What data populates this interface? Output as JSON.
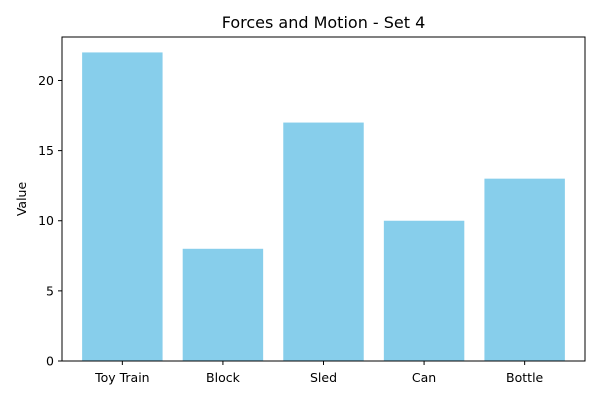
{
  "chart_data": {
    "type": "bar",
    "title": "Forces and Motion - Set 4",
    "xlabel": "",
    "ylabel": "Value",
    "categories": [
      "Toy Train",
      "Block",
      "Sled",
      "Can",
      "Bottle"
    ],
    "values": [
      22,
      8,
      17,
      10,
      13
    ],
    "ylim": [
      0,
      23.1
    ],
    "yticks": [
      0,
      5,
      10,
      15,
      20
    ],
    "grid": false,
    "bar_color": "#87CEEB",
    "axis_color": "#000000"
  }
}
